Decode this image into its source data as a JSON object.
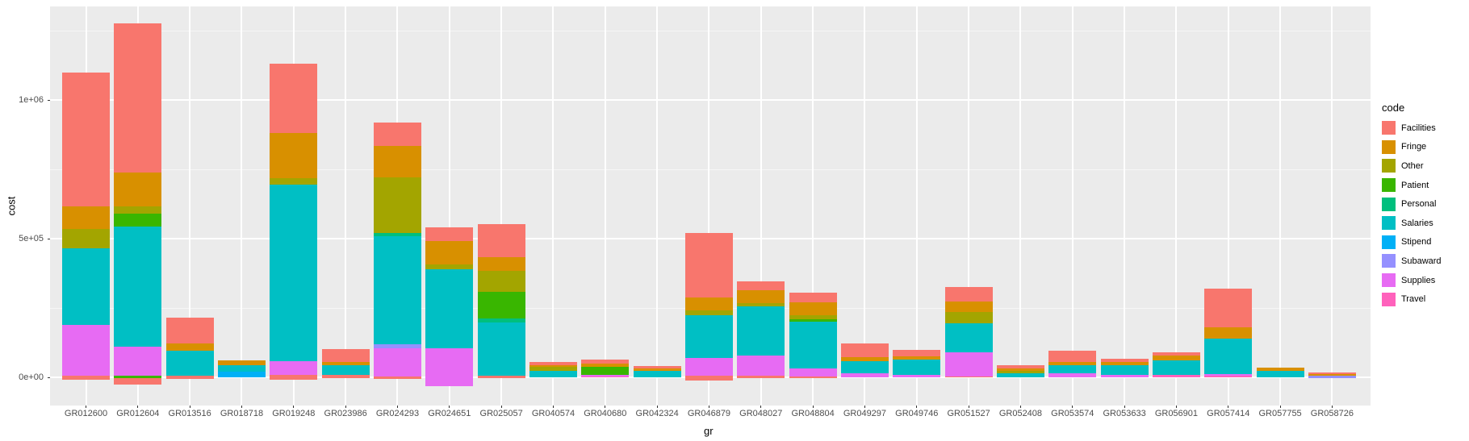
{
  "chart_data": {
    "type": "bar",
    "stacked": true,
    "orientation": "vertical",
    "xlabel": "gr",
    "ylabel": "cost",
    "legend_title": "code",
    "legend_position": "right",
    "grid": true,
    "panel_background": "#EBEBEB",
    "ylim": [
      -101000,
      1337000
    ],
    "y_ticks": [
      {
        "label": "0e+00",
        "value": 0
      },
      {
        "label": "5e+05",
        "value": 500000
      },
      {
        "label": "1e+06",
        "value": 1000000
      }
    ],
    "y_minor": [
      250000,
      750000,
      1250000
    ],
    "codes": [
      {
        "name": "Facilities",
        "color": "#F8766D"
      },
      {
        "name": "Fringe",
        "color": "#D89000"
      },
      {
        "name": "Other",
        "color": "#A3A500"
      },
      {
        "name": "Patient",
        "color": "#39B600"
      },
      {
        "name": "Personal",
        "color": "#00BF7D"
      },
      {
        "name": "Salaries",
        "color": "#00BFC4"
      },
      {
        "name": "Stipend",
        "color": "#00B0F6"
      },
      {
        "name": "Subaward",
        "color": "#9590FF"
      },
      {
        "name": "Supplies",
        "color": "#E76BF3"
      },
      {
        "name": "Travel",
        "color": "#FF62BC"
      }
    ],
    "bars": [
      {
        "label": "GR012600",
        "start": -9000,
        "segments": [
          {
            "code": "Facilities",
            "value": 15000
          },
          {
            "code": "Supplies",
            "value": 183000
          },
          {
            "code": "Salaries",
            "value": 276000
          },
          {
            "code": "Other",
            "value": 70000
          },
          {
            "code": "Fringe",
            "value": 81000
          },
          {
            "code": "Facilities",
            "value": 483000
          }
        ]
      },
      {
        "label": "GR012604",
        "start": -26000,
        "segments": [
          {
            "code": "Facilities",
            "value": 23000
          },
          {
            "code": "Patient",
            "value": 9000
          },
          {
            "code": "Supplies",
            "value": 105000
          },
          {
            "code": "Salaries",
            "value": 433000
          },
          {
            "code": "Patient",
            "value": 47000
          },
          {
            "code": "Other",
            "value": 26000
          },
          {
            "code": "Fringe",
            "value": 122000
          },
          {
            "code": "Facilities",
            "value": 538000
          }
        ]
      },
      {
        "label": "GR013516",
        "start": -6000,
        "segments": [
          {
            "code": "Facilities",
            "value": 12000
          },
          {
            "code": "Salaries",
            "value": 90000
          },
          {
            "code": "Fringe",
            "value": 26000
          },
          {
            "code": "Facilities",
            "value": 93000
          }
        ]
      },
      {
        "label": "GR018718",
        "start": 0,
        "segments": [
          {
            "code": "Stipend",
            "value": 20000
          },
          {
            "code": "Salaries",
            "value": 24000
          },
          {
            "code": "Fringe",
            "value": 17000
          }
        ]
      },
      {
        "label": "GR019248",
        "start": -8000,
        "segments": [
          {
            "code": "Facilities",
            "value": 18000
          },
          {
            "code": "Supplies",
            "value": 48000
          },
          {
            "code": "Salaries",
            "value": 636000
          },
          {
            "code": "Other",
            "value": 24000
          },
          {
            "code": "Fringe",
            "value": 163000
          },
          {
            "code": "Facilities",
            "value": 250000
          }
        ]
      },
      {
        "label": "GR023986",
        "start": -3000,
        "segments": [
          {
            "code": "Facilities",
            "value": 11000
          },
          {
            "code": "Salaries",
            "value": 35000
          },
          {
            "code": "Fringe",
            "value": 11000
          },
          {
            "code": "Facilities",
            "value": 49000
          }
        ]
      },
      {
        "label": "GR024293",
        "start": -6000,
        "segments": [
          {
            "code": "Facilities",
            "value": 10000
          },
          {
            "code": "Supplies",
            "value": 100000
          },
          {
            "code": "Subaward",
            "value": 14000
          },
          {
            "code": "Salaries",
            "value": 391000
          },
          {
            "code": "Personal",
            "value": 12000
          },
          {
            "code": "Other",
            "value": 199000
          },
          {
            "code": "Fringe",
            "value": 114000
          },
          {
            "code": "Facilities",
            "value": 84000
          }
        ]
      },
      {
        "label": "GR024651",
        "start": -33000,
        "segments": [
          {
            "code": "Supplies",
            "value": 137000
          },
          {
            "code": "Salaries",
            "value": 286000
          },
          {
            "code": "Other",
            "value": 17000
          },
          {
            "code": "Fringe",
            "value": 84000
          },
          {
            "code": "Facilities",
            "value": 50000
          }
        ]
      },
      {
        "label": "GR025057",
        "start": -3000,
        "segments": [
          {
            "code": "Facilities",
            "value": 10000
          },
          {
            "code": "Salaries",
            "value": 191000
          },
          {
            "code": "Personal",
            "value": 13000
          },
          {
            "code": "Patient",
            "value": 98000
          },
          {
            "code": "Other",
            "value": 74000
          },
          {
            "code": "Fringe",
            "value": 51000
          },
          {
            "code": "Facilities",
            "value": 119000
          }
        ]
      },
      {
        "label": "GR040574",
        "start": 0,
        "segments": [
          {
            "code": "Salaries",
            "value": 24000
          },
          {
            "code": "Other",
            "value": 15000
          },
          {
            "code": "Fringe",
            "value": 5000
          },
          {
            "code": "Facilities",
            "value": 12000
          }
        ]
      },
      {
        "label": "GR040680",
        "start": 0,
        "segments": [
          {
            "code": "Travel",
            "value": 4000
          },
          {
            "code": "Supplies",
            "value": 4000
          },
          {
            "code": "Patient",
            "value": 31000
          },
          {
            "code": "Fringe",
            "value": 9000
          },
          {
            "code": "Facilities",
            "value": 16000
          }
        ]
      },
      {
        "label": "GR042324",
        "start": 0,
        "segments": [
          {
            "code": "Salaries",
            "value": 22000
          },
          {
            "code": "Fringe",
            "value": 9000
          },
          {
            "code": "Facilities",
            "value": 9000
          }
        ]
      },
      {
        "label": "GR046879",
        "start": -13000,
        "segments": [
          {
            "code": "Facilities",
            "value": 20000
          },
          {
            "code": "Supplies",
            "value": 63000
          },
          {
            "code": "Salaries",
            "value": 154000
          },
          {
            "code": "Other",
            "value": 16000
          },
          {
            "code": "Fringe",
            "value": 48000
          },
          {
            "code": "Facilities",
            "value": 233000
          }
        ]
      },
      {
        "label": "GR048027",
        "start": -2000,
        "segments": [
          {
            "code": "Facilities",
            "value": 7000
          },
          {
            "code": "Supplies",
            "value": 73000
          },
          {
            "code": "Salaries",
            "value": 179000
          },
          {
            "code": "Other",
            "value": 10000
          },
          {
            "code": "Fringe",
            "value": 47000
          },
          {
            "code": "Facilities",
            "value": 31000
          }
        ]
      },
      {
        "label": "GR048804",
        "start": -4000,
        "segments": [
          {
            "code": "Facilities",
            "value": 6000
          },
          {
            "code": "Supplies",
            "value": 29000
          },
          {
            "code": "Salaries",
            "value": 171000
          },
          {
            "code": "Patient",
            "value": 8000
          },
          {
            "code": "Other",
            "value": 14000
          },
          {
            "code": "Fringe",
            "value": 46000
          },
          {
            "code": "Facilities",
            "value": 34000
          }
        ]
      },
      {
        "label": "GR049297",
        "start": 0,
        "segments": [
          {
            "code": "Supplies",
            "value": 15000
          },
          {
            "code": "Salaries",
            "value": 42000
          },
          {
            "code": "Fringe",
            "value": 15000
          },
          {
            "code": "Facilities",
            "value": 51000
          }
        ]
      },
      {
        "label": "GR049746",
        "start": 0,
        "segments": [
          {
            "code": "Supplies",
            "value": 9000
          },
          {
            "code": "Salaries",
            "value": 56000
          },
          {
            "code": "Fringe",
            "value": 10000
          },
          {
            "code": "Facilities",
            "value": 23000
          }
        ]
      },
      {
        "label": "GR051527",
        "start": -1000,
        "segments": [
          {
            "code": "Facilities",
            "value": 4000
          },
          {
            "code": "Supplies",
            "value": 86000
          },
          {
            "code": "Salaries",
            "value": 106000
          },
          {
            "code": "Other",
            "value": 40000
          },
          {
            "code": "Fringe",
            "value": 37000
          },
          {
            "code": "Facilities",
            "value": 54000
          }
        ]
      },
      {
        "label": "GR052408",
        "start": 0,
        "segments": [
          {
            "code": "Salaries",
            "value": 14000
          },
          {
            "code": "Other",
            "value": 9000
          },
          {
            "code": "Fringe",
            "value": 8000
          },
          {
            "code": "Facilities",
            "value": 13000
          }
        ]
      },
      {
        "label": "GR053574",
        "start": 0,
        "segments": [
          {
            "code": "Supplies",
            "value": 14000
          },
          {
            "code": "Salaries",
            "value": 30000
          },
          {
            "code": "Fringe",
            "value": 11000
          },
          {
            "code": "Facilities",
            "value": 41000
          }
        ]
      },
      {
        "label": "GR053633",
        "start": 0,
        "segments": [
          {
            "code": "Supplies",
            "value": 8000
          },
          {
            "code": "Salaries",
            "value": 37000
          },
          {
            "code": "Fringe",
            "value": 9000
          },
          {
            "code": "Facilities",
            "value": 13000
          }
        ]
      },
      {
        "label": "GR056901",
        "start": 0,
        "segments": [
          {
            "code": "Travel",
            "value": 9000
          },
          {
            "code": "Salaries",
            "value": 51000
          },
          {
            "code": "Fringe",
            "value": 18000
          },
          {
            "code": "Facilities",
            "value": 11000
          }
        ]
      },
      {
        "label": "GR057414",
        "start": 0,
        "segments": [
          {
            "code": "Travel",
            "value": 6000
          },
          {
            "code": "Supplies",
            "value": 6000
          },
          {
            "code": "Salaries",
            "value": 128000
          },
          {
            "code": "Fringe",
            "value": 40000
          },
          {
            "code": "Facilities",
            "value": 141000
          }
        ]
      },
      {
        "label": "GR057755",
        "start": 0,
        "segments": [
          {
            "code": "Salaries",
            "value": 22000
          },
          {
            "code": "Fringe",
            "value": 13000
          }
        ]
      },
      {
        "label": "GR058726",
        "start": -3000,
        "segments": [
          {
            "code": "Subaward",
            "value": 9000
          },
          {
            "code": "Fringe",
            "value": 6000
          },
          {
            "code": "Facilities",
            "value": 6000
          }
        ]
      }
    ]
  }
}
